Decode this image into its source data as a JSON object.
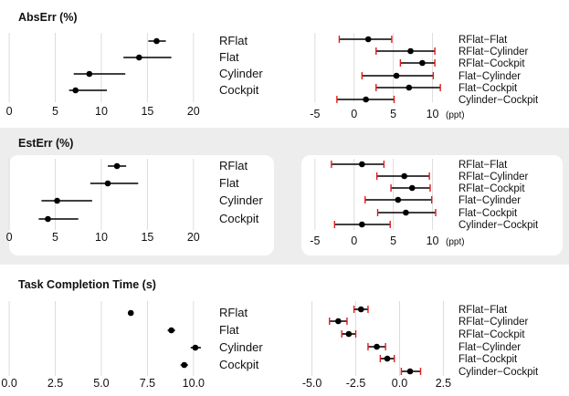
{
  "chart_data": [
    {
      "type": "errorbar",
      "title": "AbsErr (%)",
      "panels": [
        {
          "categories": [
            "RFlat",
            "Flat",
            "Cylinder",
            "Cockpit"
          ],
          "xticks": [
            0,
            5,
            10,
            15,
            20
          ],
          "xlim": [
            -1,
            22
          ],
          "points": [
            {
              "label": "RFlat",
              "mean": 16.0,
              "lo": 15.1,
              "hi": 17.0
            },
            {
              "label": "Flat",
              "mean": 14.1,
              "lo": 12.4,
              "hi": 17.6
            },
            {
              "label": "Cylinder",
              "mean": 8.7,
              "lo": 7.0,
              "hi": 12.6
            },
            {
              "label": "Cockpit",
              "mean": 7.2,
              "lo": 6.5,
              "hi": 10.6
            }
          ]
        },
        {
          "categories": [
            "RFlat−Flat",
            "RFlat−Cylinder",
            "RFlat−Cockpit",
            "Flat−Cylinder",
            "Flat−Cockpit",
            "Cylinder−Cockpit"
          ],
          "xticks": [
            -5,
            0,
            5,
            10
          ],
          "xunit": "(ppt)",
          "xlim": [
            -6.5,
            12.5
          ],
          "points": [
            {
              "label": "RFlat−Flat",
              "mean": 1.8,
              "lo": -1.9,
              "hi": 4.8
            },
            {
              "label": "RFlat−Cylinder",
              "mean": 7.2,
              "lo": 2.8,
              "hi": 10.3
            },
            {
              "label": "RFlat−Cockpit",
              "mean": 8.7,
              "lo": 5.9,
              "hi": 10.3
            },
            {
              "label": "Flat−Cylinder",
              "mean": 5.4,
              "lo": 1.0,
              "hi": 10.1
            },
            {
              "label": "Flat−Cockpit",
              "mean": 7.0,
              "lo": 2.8,
              "hi": 11.0
            },
            {
              "label": "Cylinder−Cockpit",
              "mean": 1.5,
              "lo": -2.2,
              "hi": 5.1
            }
          ]
        }
      ]
    },
    {
      "type": "errorbar",
      "title": "EstErr (%)",
      "panels": [
        {
          "categories": [
            "RFlat",
            "Flat",
            "Cylinder",
            "Cockpit"
          ],
          "xticks": [
            0,
            5,
            10,
            15,
            20
          ],
          "xlim": [
            -1,
            22
          ],
          "points": [
            {
              "label": "RFlat",
              "mean": 11.7,
              "lo": 10.7,
              "hi": 12.7
            },
            {
              "label": "Flat",
              "mean": 10.7,
              "lo": 8.8,
              "hi": 14.0
            },
            {
              "label": "Cylinder",
              "mean": 5.2,
              "lo": 3.5,
              "hi": 9.0
            },
            {
              "label": "Cockpit",
              "mean": 4.2,
              "lo": 3.2,
              "hi": 7.5
            }
          ]
        },
        {
          "categories": [
            "RFlat−Flat",
            "RFlat−Cylinder",
            "RFlat−Cockpit",
            "Flat−Cylinder",
            "Flat−Cockpit",
            "Cylinder−Cockpit"
          ],
          "xticks": [
            -5,
            0,
            5,
            10
          ],
          "xunit": "(ppt)",
          "xlim": [
            -6.5,
            12.5
          ],
          "points": [
            {
              "label": "RFlat−Flat",
              "mean": 1.0,
              "lo": -2.9,
              "hi": 3.8
            },
            {
              "label": "RFlat−Cylinder",
              "mean": 6.4,
              "lo": 2.9,
              "hi": 9.6
            },
            {
              "label": "RFlat−Cockpit",
              "mean": 7.4,
              "lo": 4.7,
              "hi": 9.7
            },
            {
              "label": "Flat−Cylinder",
              "mean": 5.6,
              "lo": 1.4,
              "hi": 9.9
            },
            {
              "label": "Flat−Cockpit",
              "mean": 6.6,
              "lo": 3.0,
              "hi": 10.4
            },
            {
              "label": "Cylinder−Cockpit",
              "mean": 1.0,
              "lo": -2.5,
              "hi": 4.6
            }
          ]
        }
      ]
    },
    {
      "type": "errorbar",
      "title": "Task Completion Time (s)",
      "panels": [
        {
          "categories": [
            "RFlat",
            "Flat",
            "Cylinder",
            "Cockpit"
          ],
          "xticks": [
            "0.0",
            "2.5",
            "5.0",
            "7.5",
            "10.0"
          ],
          "xlim": [
            -0.5,
            11.0
          ],
          "points": [
            {
              "label": "RFlat",
              "mean": 6.6,
              "lo": 6.6,
              "hi": 6.6
            },
            {
              "label": "Flat",
              "mean": 8.8,
              "lo": 8.6,
              "hi": 9.0
            },
            {
              "label": "Cylinder",
              "mean": 10.1,
              "lo": 9.85,
              "hi": 10.4
            },
            {
              "label": "Cockpit",
              "mean": 9.5,
              "lo": 9.3,
              "hi": 9.7
            }
          ]
        },
        {
          "categories": [
            "RFlat−Flat",
            "RFlat−Cylinder",
            "RFlat−Cockpit",
            "Flat−Cylinder",
            "Flat−Cockpit",
            "Cylinder−Cockpit"
          ],
          "xticks": [
            "-5.0",
            "-2.5",
            "0.0",
            "2.5"
          ],
          "xlim": [
            -5.5,
            3.0
          ],
          "points": [
            {
              "label": "RFlat−Flat",
              "mean": -2.2,
              "lo": -2.6,
              "hi": -1.8
            },
            {
              "label": "RFlat−Cylinder",
              "mean": -3.5,
              "lo": -4.0,
              "hi": -3.0
            },
            {
              "label": "RFlat−Cockpit",
              "mean": -2.9,
              "lo": -3.3,
              "hi": -2.5
            },
            {
              "label": "Flat−Cylinder",
              "mean": -1.3,
              "lo": -1.8,
              "hi": -0.8
            },
            {
              "label": "Flat−Cockpit",
              "mean": -0.7,
              "lo": -1.1,
              "hi": -0.3
            },
            {
              "label": "Cylinder−Cockpit",
              "mean": 0.6,
              "lo": 0.1,
              "hi": 1.2
            }
          ]
        }
      ]
    }
  ],
  "colors": {
    "point": "#000000",
    "ci_bar": "#000000",
    "ci_caps": "#e41a1c",
    "grid": "#dcdcdc",
    "band": "#ededed",
    "panel_bg": "#ffffff"
  }
}
